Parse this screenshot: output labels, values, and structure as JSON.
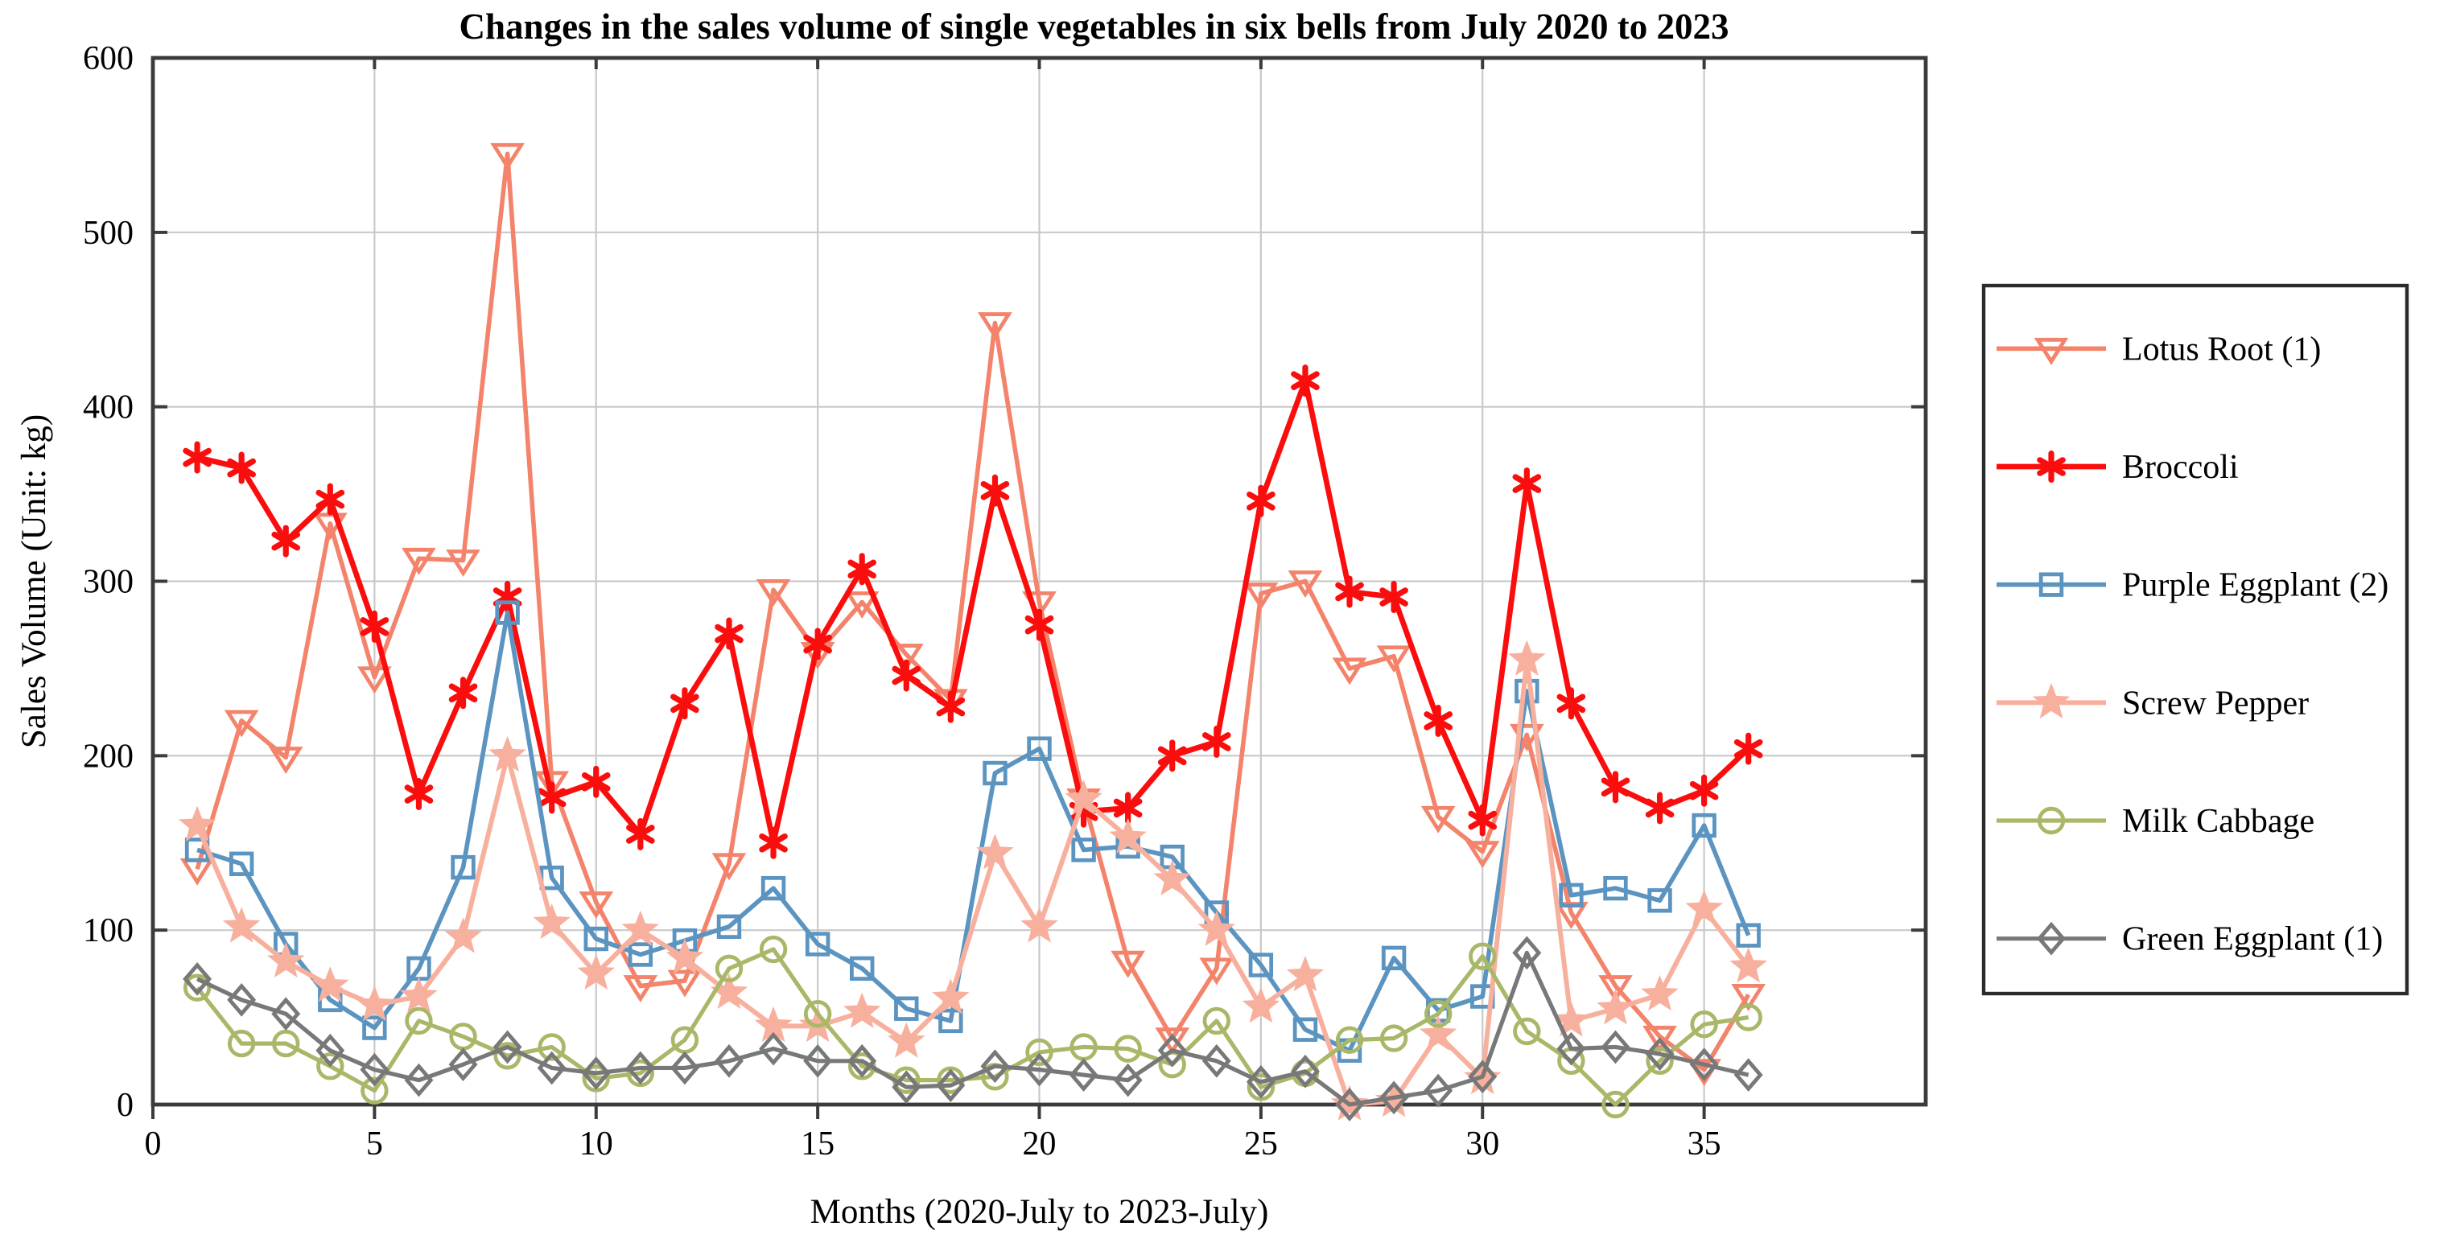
{
  "figure": {
    "title": "Changes in the sales volume of single vegetables in six bells from July 2020 to 2023",
    "xlabel": "Months (2020-July to 2023-July)",
    "ylabel": "Sales Volume (Unit: kg)"
  },
  "chart_data": {
    "type": "line",
    "title": "Changes in the sales volume of single vegetables in six bells from July 2020 to 2023",
    "xlabel": "Months (2020-July to 2023-July)",
    "ylabel": "Sales Volume (Unit: kg)",
    "xlim": [
      0,
      40
    ],
    "ylim": [
      0,
      600
    ],
    "xticks": [
      0,
      5,
      10,
      15,
      20,
      25,
      30,
      35
    ],
    "yticks": [
      0,
      100,
      200,
      300,
      400,
      500,
      600
    ],
    "grid": true,
    "legend_position": "outside-right",
    "grid_color": "#c9c9c9",
    "axis_color": "#3b3b3b",
    "x": [
      1,
      2,
      3,
      4,
      5,
      6,
      7,
      8,
      9,
      10,
      11,
      12,
      13,
      14,
      15,
      16,
      17,
      18,
      19,
      20,
      21,
      22,
      23,
      24,
      25,
      26,
      27,
      28,
      29,
      30,
      31,
      32,
      33,
      34,
      35,
      36
    ],
    "series": [
      {
        "name": "Lotus Root (1)",
        "color": "#f4836b",
        "marker": "triangle-down",
        "marker_fill": "none",
        "line_width": 2.8,
        "values": [
          135,
          220,
          199,
          333,
          245,
          313,
          312,
          545,
          185,
          116,
          68,
          71,
          138,
          295,
          259,
          288,
          258,
          232,
          448,
          288,
          175,
          82,
          38,
          78,
          293,
          300,
          250,
          257,
          165,
          145,
          212,
          110,
          68,
          39,
          20,
          63
        ]
      },
      {
        "name": "Broccoli",
        "color": "#fb0d0d",
        "marker": "asterisk",
        "marker_fill": "none",
        "line_width": 3.4,
        "values": [
          371,
          365,
          323,
          347,
          274,
          178,
          236,
          291,
          176,
          185,
          155,
          230,
          270,
          150,
          264,
          307,
          246,
          228,
          352,
          275,
          168,
          170,
          200,
          208,
          346,
          415,
          294,
          291,
          220,
          163,
          356,
          230,
          182,
          170,
          180,
          204
        ]
      },
      {
        "name": "Purple Eggplant (2)",
        "color": "#5b94c0",
        "marker": "square",
        "marker_fill": "none",
        "line_width": 2.8,
        "values": [
          146,
          138,
          92,
          60,
          44,
          78,
          136,
          282,
          130,
          95,
          86,
          94,
          102,
          124,
          92,
          78,
          55,
          48,
          190,
          204,
          146,
          148,
          142,
          110,
          80,
          43,
          31,
          84,
          54,
          62,
          237,
          120,
          124,
          117,
          160,
          97
        ]
      },
      {
        "name": "Screw Pepper",
        "color": "#f8b09e",
        "marker": "star5",
        "marker_fill": "solid",
        "line_width": 3.0,
        "values": [
          160,
          102,
          82,
          68,
          57,
          62,
          96,
          200,
          104,
          75,
          100,
          84,
          64,
          45,
          45,
          53,
          36,
          61,
          144,
          102,
          175,
          153,
          129,
          100,
          56,
          74,
          0,
          2,
          40,
          15,
          255,
          48,
          55,
          63,
          112,
          79
        ]
      },
      {
        "name": "Milk Cabbage",
        "color": "#a8b868",
        "marker": "circle",
        "marker_fill": "none",
        "line_width": 2.6,
        "values": [
          67,
          35,
          35,
          22,
          8,
          48,
          39,
          28,
          33,
          15,
          18,
          37,
          78,
          89,
          52,
          22,
          14,
          14,
          16,
          30,
          33,
          32,
          23,
          48,
          10,
          18,
          37,
          38,
          52,
          85,
          42,
          25,
          0,
          25,
          46,
          50
        ]
      },
      {
        "name": "Green Eggplant (1)",
        "color": "#787878",
        "marker": "diamond",
        "marker_fill": "none",
        "line_width": 2.6,
        "values": [
          72,
          60,
          52,
          31,
          20,
          14,
          23,
          33,
          21,
          18,
          21,
          21,
          25,
          32,
          25,
          25,
          10,
          11,
          22,
          20,
          17,
          14,
          31,
          25,
          13,
          19,
          0,
          4,
          8,
          16,
          87,
          32,
          33,
          29,
          23,
          17
        ]
      }
    ]
  }
}
